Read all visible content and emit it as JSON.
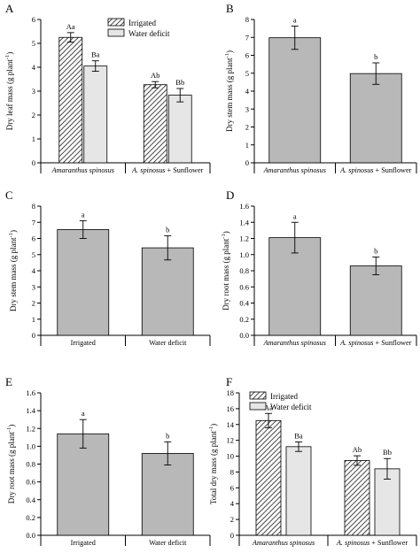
{
  "colors": {
    "irrigated_fill": "#ffffff",
    "irrigated_hatch": "#333333",
    "water_deficit_fill": "#e6e6e6",
    "single_bar_fill": "#b8b8b8",
    "axis": "#000000"
  },
  "chart_data": [
    {
      "panel": "A",
      "type": "bar",
      "grouped": true,
      "ylabel": "Dry leaf mass (g plant⁻¹)",
      "ylim": [
        0,
        6
      ],
      "yticks": [
        "0",
        "1",
        "2",
        "3",
        "4",
        "5",
        "6"
      ],
      "categories": [
        "Amaranthus spinosus",
        "A. spinosus + Sunflower"
      ],
      "series": [
        {
          "name": "Irrigated",
          "style": "hatched",
          "values": [
            5.25,
            3.27
          ],
          "errors": [
            0.2,
            0.13
          ],
          "letters": [
            "Aa",
            "Ab"
          ]
        },
        {
          "name": "Water deficit",
          "style": "light",
          "values": [
            4.05,
            2.83
          ],
          "errors": [
            0.22,
            0.28
          ],
          "letters": [
            "Ba",
            "Bb"
          ]
        }
      ],
      "legend": "top-left"
    },
    {
      "panel": "B",
      "type": "bar",
      "ylabel": "Dry stem mass (g plant⁻¹)",
      "ylim": [
        0,
        8
      ],
      "yticks": [
        "0",
        "1",
        "2",
        "3",
        "4",
        "5",
        "6",
        "7",
        "8"
      ],
      "categories": [
        "Amaranthus spinosus",
        "A. spinosus + Sunflower"
      ],
      "values": [
        6.98,
        4.98
      ],
      "errors": [
        0.65,
        0.6
      ],
      "letters": [
        "a",
        "b"
      ]
    },
    {
      "panel": "C",
      "type": "bar",
      "ylabel": "Dry stem mass (g plant⁻¹)",
      "ylim": [
        0,
        8
      ],
      "yticks": [
        "0",
        "1",
        "2",
        "3",
        "4",
        "5",
        "6",
        "7",
        "8"
      ],
      "categories": [
        "Irrigated",
        "Water deficit"
      ],
      "values": [
        6.55,
        5.42
      ],
      "errors": [
        0.55,
        0.75
      ],
      "letters": [
        "a",
        "b"
      ]
    },
    {
      "panel": "D",
      "type": "bar",
      "ylabel": "Dry root mass (g plant⁻¹)",
      "ylim": [
        0,
        1.6
      ],
      "yticks": [
        "0.0",
        "0.2",
        "0.4",
        "0.6",
        "0.8",
        "1.0",
        "1.2",
        "1.4",
        "1.6"
      ],
      "categories": [
        "Amaranthus spinosus",
        "A. spinosus + Sunflower"
      ],
      "values": [
        1.21,
        0.86
      ],
      "errors": [
        0.19,
        0.11
      ],
      "letters": [
        "a",
        "b"
      ]
    },
    {
      "panel": "E",
      "type": "bar",
      "ylabel": "Dry root mass (g plant⁻¹)",
      "ylim": [
        0,
        1.6
      ],
      "yticks": [
        "0.0",
        "0.2",
        "0.4",
        "0.6",
        "0.8",
        "1.0",
        "1.2",
        "1.4",
        "1.6"
      ],
      "categories": [
        "Irrigated",
        "Water deficit"
      ],
      "values": [
        1.14,
        0.92
      ],
      "errors": [
        0.16,
        0.13
      ],
      "letters": [
        "a",
        "b"
      ]
    },
    {
      "panel": "F",
      "type": "bar",
      "grouped": true,
      "ylabel": "Total dry mass (g plant⁻¹)",
      "ylim": [
        0,
        18
      ],
      "yticks": [
        "0",
        "2",
        "4",
        "6",
        "8",
        "10",
        "12",
        "14",
        "16",
        "18"
      ],
      "categories": [
        "Amaranthus spinosus",
        "A. spinosus + Sunflower"
      ],
      "series": [
        {
          "name": "Irrigated",
          "style": "hatched",
          "values": [
            14.5,
            9.45
          ],
          "errors": [
            0.9,
            0.6
          ],
          "letters": [
            "Aa",
            "Ab"
          ]
        },
        {
          "name": "Water deficit",
          "style": "light",
          "values": [
            11.2,
            8.4
          ],
          "errors": [
            0.6,
            1.3
          ],
          "letters": [
            "Ba",
            "Bb"
          ]
        }
      ],
      "legend": "top-left"
    }
  ]
}
